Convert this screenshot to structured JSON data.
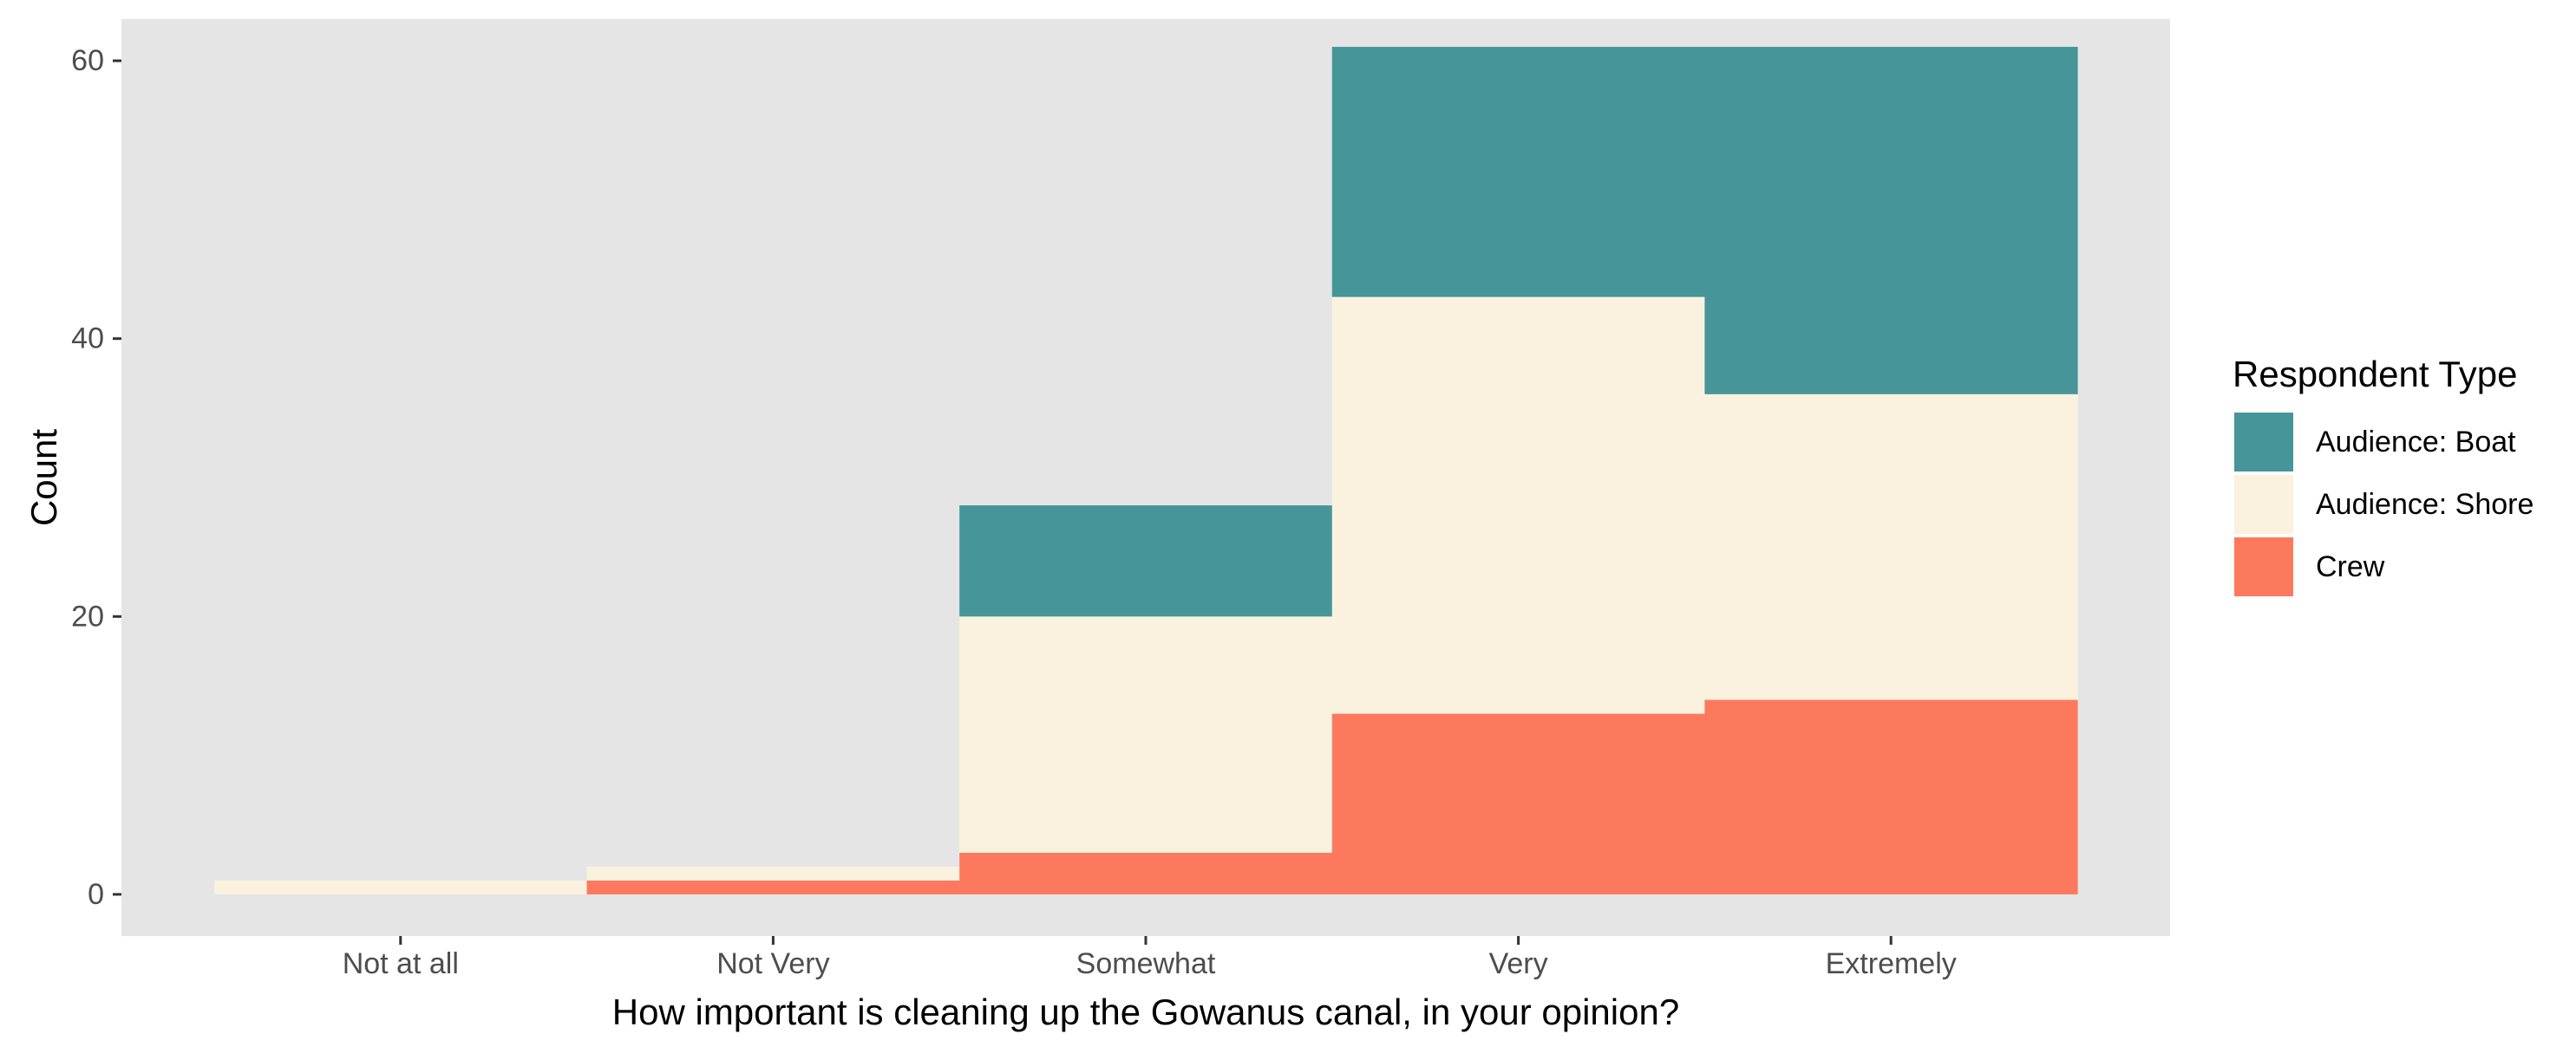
{
  "chart_data": {
    "type": "bar",
    "stacked": true,
    "categories": [
      "Not at all",
      "Not Very",
      "Somewhat",
      "Very",
      "Extremely"
    ],
    "series": [
      {
        "name": "Crew",
        "color": "#FC795E",
        "values": [
          0,
          1,
          3,
          13,
          14
        ]
      },
      {
        "name": "Audience: Shore",
        "color": "#FAF2DF",
        "values": [
          1,
          1,
          17,
          30,
          22
        ]
      },
      {
        "name": "Audience: Boat",
        "color": "#469599",
        "values": [
          0,
          0,
          8,
          18,
          25
        ]
      }
    ],
    "title": "",
    "xlabel": "How important is cleaning up the Gowanus canal, in your opinion?",
    "ylabel": "Count",
    "ylim": [
      -3,
      63
    ],
    "yticks": [
      0,
      20,
      40,
      60
    ],
    "legend_title": "Respondent Type",
    "legend_entries": [
      "Audience: Boat",
      "Audience: Shore",
      "Crew"
    ],
    "legend_position": "right",
    "panel_background": "#E5E5E5",
    "grid": false
  }
}
